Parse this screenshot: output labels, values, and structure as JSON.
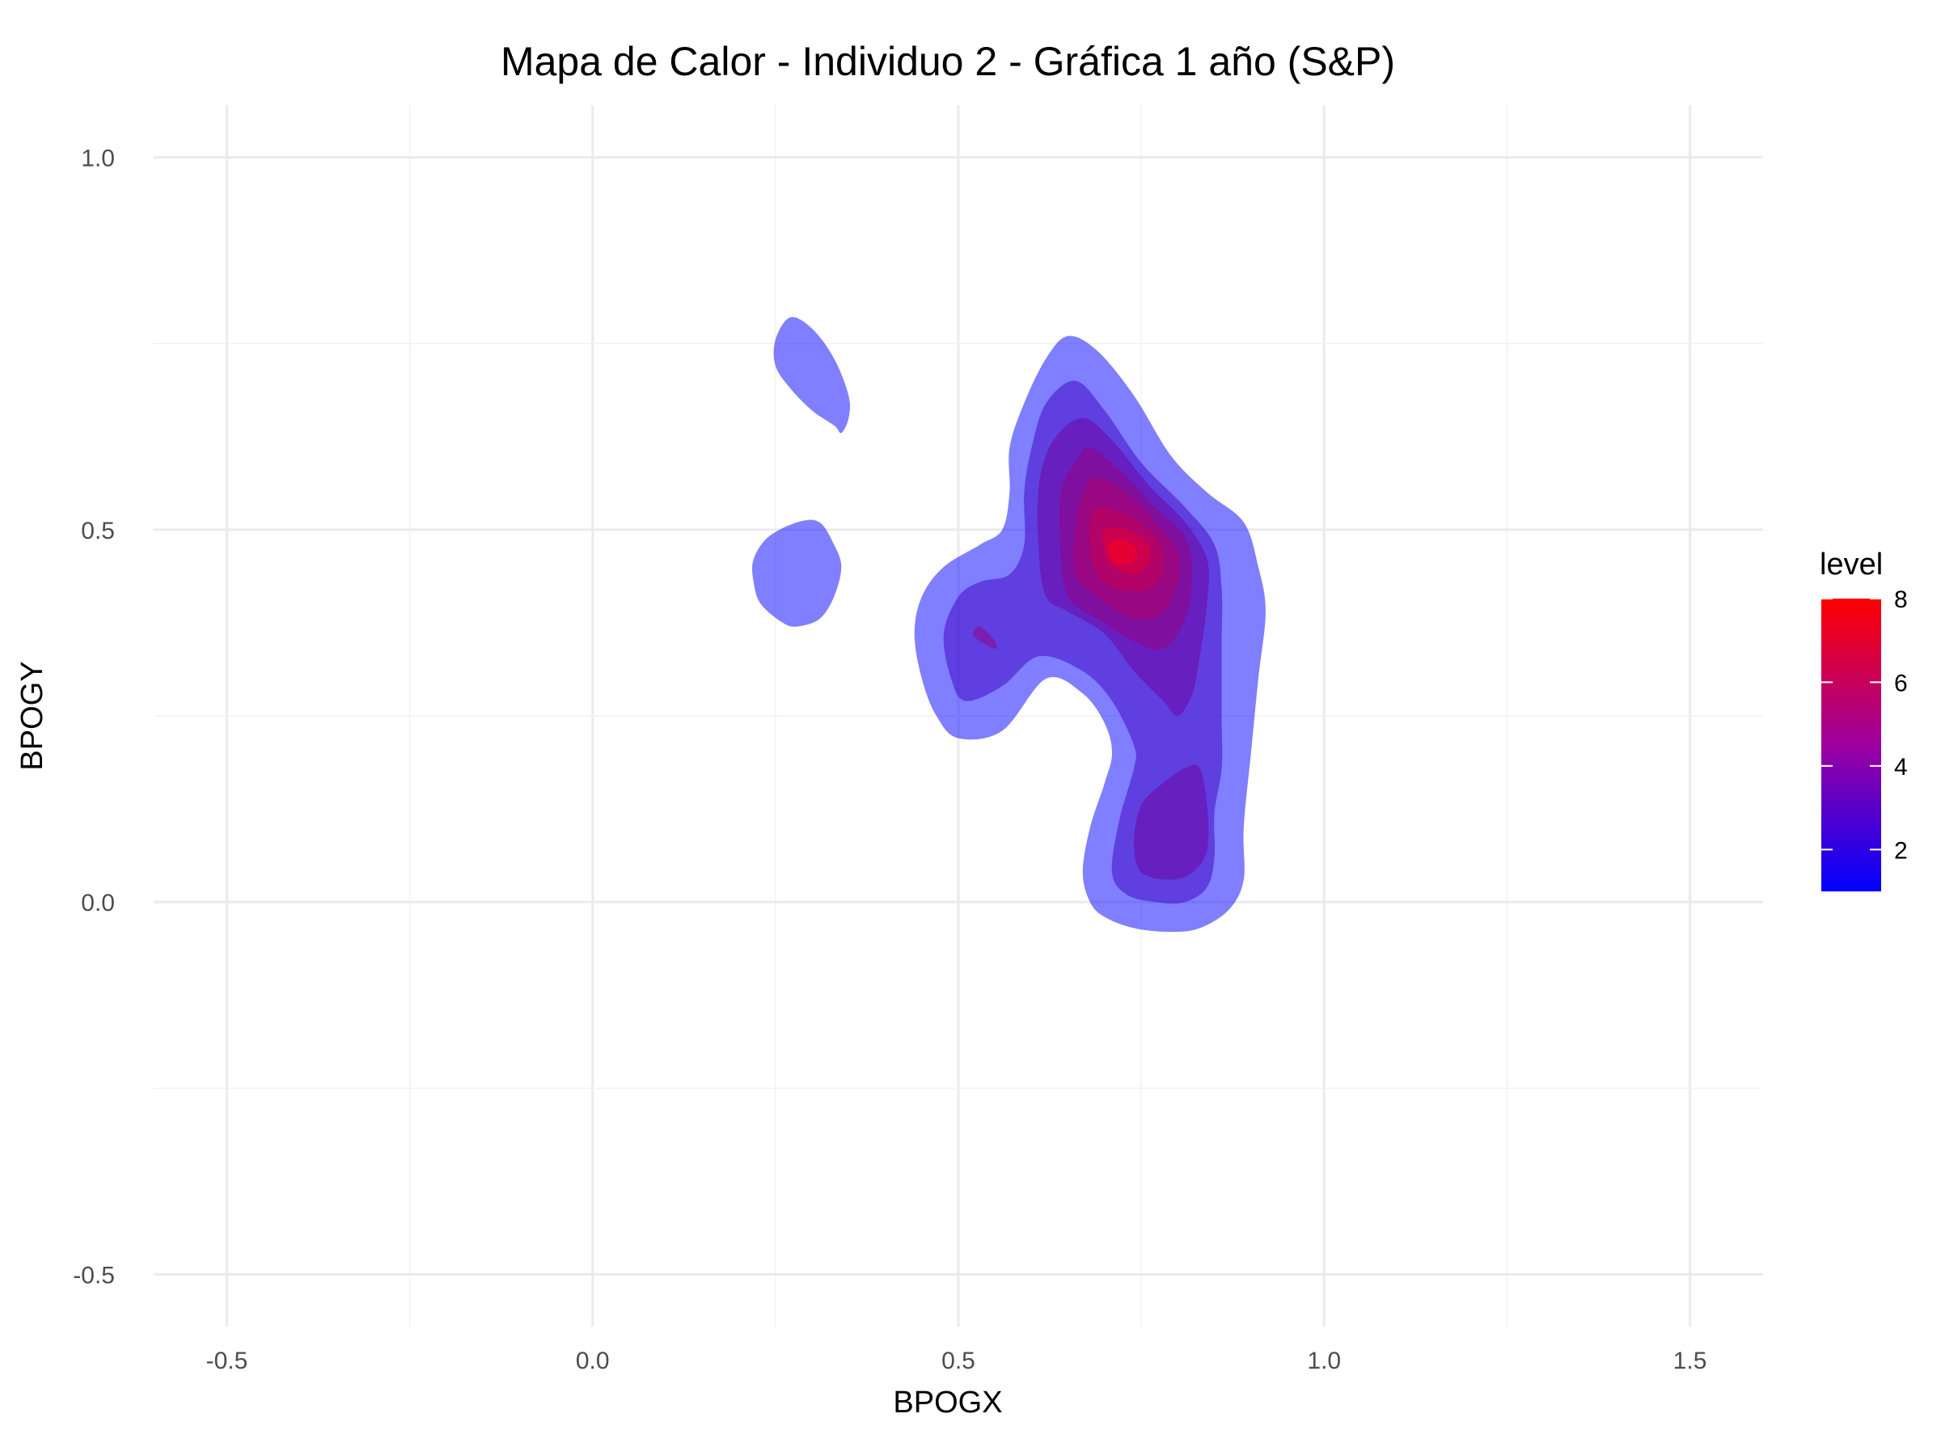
{
  "chart_data": {
    "type": "heatmap",
    "subtype": "2d-density-filled-contour",
    "title": "Mapa de Calor - Individuo 2 - Gráfica 1 año (S&P)",
    "xlabel": "BPOGX",
    "ylabel": "BPOGY",
    "xlim": [
      -0.6,
      1.6
    ],
    "ylim": [
      -0.57,
      1.07
    ],
    "x_ticks": [
      -0.5,
      0.0,
      0.5,
      1.0,
      1.5
    ],
    "x_tick_labels": [
      "-0.5",
      "0.0",
      "0.5",
      "1.0",
      "1.5"
    ],
    "y_ticks": [
      -0.5,
      0.0,
      0.5,
      1.0
    ],
    "y_tick_labels": [
      "-0.5",
      "0.0",
      "0.5",
      "1.0"
    ],
    "grid": true,
    "legend": {
      "title": "level",
      "position": "right",
      "range": [
        1,
        8
      ],
      "breaks": [
        2,
        4,
        6,
        8
      ],
      "break_labels": [
        "2",
        "4",
        "6",
        "8"
      ],
      "low_color": "#0000ff",
      "high_color": "#ff0000"
    },
    "fill_opacity": 0.5,
    "contours": [
      {
        "level": 1,
        "color": "#0000ff",
        "points": [
          [
            0.65,
            0.76
          ],
          [
            0.69,
            0.74
          ],
          [
            0.74,
            0.68
          ],
          [
            0.79,
            0.6
          ],
          [
            0.84,
            0.55
          ],
          [
            0.89,
            0.51
          ],
          [
            0.91,
            0.45
          ],
          [
            0.92,
            0.39
          ],
          [
            0.91,
            0.3
          ],
          [
            0.9,
            0.2
          ],
          [
            0.89,
            0.1
          ],
          [
            0.89,
            0.03
          ],
          [
            0.87,
            -0.01
          ],
          [
            0.83,
            -0.035
          ],
          [
            0.79,
            -0.04
          ],
          [
            0.74,
            -0.035
          ],
          [
            0.7,
            -0.02
          ],
          [
            0.68,
            0.0
          ],
          [
            0.67,
            0.04
          ],
          [
            0.68,
            0.1
          ],
          [
            0.7,
            0.16
          ],
          [
            0.71,
            0.2
          ],
          [
            0.7,
            0.24
          ],
          [
            0.67,
            0.28
          ],
          [
            0.62,
            0.3
          ],
          [
            0.56,
            0.23
          ],
          [
            0.5,
            0.22
          ],
          [
            0.47,
            0.25
          ],
          [
            0.45,
            0.3
          ],
          [
            0.44,
            0.36
          ],
          [
            0.45,
            0.41
          ],
          [
            0.48,
            0.45
          ],
          [
            0.53,
            0.48
          ],
          [
            0.56,
            0.5
          ],
          [
            0.57,
            0.55
          ],
          [
            0.57,
            0.61
          ],
          [
            0.59,
            0.67
          ],
          [
            0.62,
            0.73
          ]
        ]
      },
      {
        "level": 1,
        "color": "#0000ff",
        "points": [
          [
            0.27,
            0.785
          ],
          [
            0.3,
            0.77
          ],
          [
            0.33,
            0.73
          ],
          [
            0.35,
            0.68
          ],
          [
            0.35,
            0.65
          ],
          [
            0.34,
            0.63
          ],
          [
            0.33,
            0.64
          ],
          [
            0.3,
            0.66
          ],
          [
            0.27,
            0.69
          ],
          [
            0.25,
            0.72
          ],
          [
            0.25,
            0.755
          ]
        ]
      },
      {
        "level": 1,
        "color": "#0000ff",
        "points": [
          [
            0.28,
            0.51
          ],
          [
            0.31,
            0.51
          ],
          [
            0.33,
            0.48
          ],
          [
            0.34,
            0.45
          ],
          [
            0.33,
            0.41
          ],
          [
            0.31,
            0.38
          ],
          [
            0.28,
            0.37
          ],
          [
            0.26,
            0.375
          ],
          [
            0.23,
            0.4
          ],
          [
            0.22,
            0.43
          ],
          [
            0.22,
            0.46
          ],
          [
            0.24,
            0.49
          ]
        ]
      },
      {
        "level": 2,
        "color": "#3f00c0",
        "points": [
          [
            0.66,
            0.7
          ],
          [
            0.7,
            0.66
          ],
          [
            0.75,
            0.59
          ],
          [
            0.81,
            0.53
          ],
          [
            0.85,
            0.48
          ],
          [
            0.86,
            0.42
          ],
          [
            0.86,
            0.35
          ],
          [
            0.86,
            0.25
          ],
          [
            0.86,
            0.18
          ],
          [
            0.85,
            0.12
          ],
          [
            0.85,
            0.06
          ],
          [
            0.84,
            0.02
          ],
          [
            0.81,
            0.0
          ],
          [
            0.77,
            0.0
          ],
          [
            0.73,
            0.01
          ],
          [
            0.71,
            0.04
          ],
          [
            0.72,
            0.11
          ],
          [
            0.74,
            0.18
          ],
          [
            0.74,
            0.21
          ],
          [
            0.71,
            0.27
          ],
          [
            0.67,
            0.31
          ],
          [
            0.61,
            0.33
          ],
          [
            0.56,
            0.29
          ],
          [
            0.51,
            0.27
          ],
          [
            0.49,
            0.3
          ],
          [
            0.48,
            0.36
          ],
          [
            0.5,
            0.41
          ],
          [
            0.53,
            0.43
          ],
          [
            0.57,
            0.44
          ],
          [
            0.59,
            0.48
          ],
          [
            0.59,
            0.55
          ],
          [
            0.6,
            0.61
          ],
          [
            0.62,
            0.67
          ]
        ]
      },
      {
        "level": 3,
        "color": "#7100a0",
        "points": [
          [
            0.67,
            0.65
          ],
          [
            0.71,
            0.62
          ],
          [
            0.76,
            0.56
          ],
          [
            0.81,
            0.51
          ],
          [
            0.84,
            0.46
          ],
          [
            0.84,
            0.4
          ],
          [
            0.83,
            0.33
          ],
          [
            0.82,
            0.28
          ],
          [
            0.8,
            0.25
          ],
          [
            0.78,
            0.27
          ],
          [
            0.74,
            0.31
          ],
          [
            0.7,
            0.36
          ],
          [
            0.65,
            0.39
          ],
          [
            0.62,
            0.41
          ],
          [
            0.61,
            0.47
          ],
          [
            0.61,
            0.56
          ],
          [
            0.63,
            0.62
          ]
        ]
      },
      {
        "level": 3,
        "color": "#7100a0",
        "points": [
          [
            0.83,
            0.18
          ],
          [
            0.84,
            0.13
          ],
          [
            0.84,
            0.07
          ],
          [
            0.82,
            0.04
          ],
          [
            0.79,
            0.03
          ],
          [
            0.75,
            0.04
          ],
          [
            0.74,
            0.08
          ],
          [
            0.75,
            0.13
          ],
          [
            0.78,
            0.16
          ],
          [
            0.81,
            0.18
          ]
        ]
      },
      {
        "level": 4,
        "color": "#960080",
        "points": [
          [
            0.68,
            0.61
          ],
          [
            0.72,
            0.58
          ],
          [
            0.77,
            0.53
          ],
          [
            0.81,
            0.49
          ],
          [
            0.82,
            0.44
          ],
          [
            0.81,
            0.38
          ],
          [
            0.78,
            0.34
          ],
          [
            0.74,
            0.35
          ],
          [
            0.69,
            0.38
          ],
          [
            0.65,
            0.41
          ],
          [
            0.64,
            0.47
          ],
          [
            0.64,
            0.55
          ],
          [
            0.66,
            0.59
          ]
        ]
      },
      {
        "level": 4,
        "color": "#960080",
        "points": [
          [
            0.53,
            0.37
          ],
          [
            0.55,
            0.35
          ],
          [
            0.55,
            0.34
          ],
          [
            0.53,
            0.35
          ],
          [
            0.52,
            0.36
          ]
        ]
      },
      {
        "level": 5,
        "color": "#b30066",
        "points": [
          [
            0.69,
            0.57
          ],
          [
            0.73,
            0.55
          ],
          [
            0.77,
            0.51
          ],
          [
            0.8,
            0.47
          ],
          [
            0.8,
            0.43
          ],
          [
            0.78,
            0.39
          ],
          [
            0.74,
            0.38
          ],
          [
            0.69,
            0.41
          ],
          [
            0.66,
            0.44
          ],
          [
            0.66,
            0.5
          ],
          [
            0.67,
            0.55
          ]
        ]
      },
      {
        "level": 6,
        "color": "#cc004d",
        "points": [
          [
            0.69,
            0.53
          ],
          [
            0.73,
            0.52
          ],
          [
            0.77,
            0.49
          ],
          [
            0.78,
            0.45
          ],
          [
            0.76,
            0.42
          ],
          [
            0.72,
            0.42
          ],
          [
            0.69,
            0.44
          ],
          [
            0.68,
            0.48
          ],
          [
            0.68,
            0.51
          ]
        ]
      },
      {
        "level": 7,
        "color": "#e60033",
        "points": [
          [
            0.7,
            0.5
          ],
          [
            0.73,
            0.5
          ],
          [
            0.76,
            0.48
          ],
          [
            0.76,
            0.455
          ],
          [
            0.74,
            0.44
          ],
          [
            0.71,
            0.45
          ],
          [
            0.7,
            0.47
          ]
        ]
      },
      {
        "level": 8,
        "color": "#ff001a",
        "points": [
          [
            0.71,
            0.485
          ],
          [
            0.73,
            0.485
          ],
          [
            0.745,
            0.47
          ],
          [
            0.735,
            0.455
          ],
          [
            0.715,
            0.455
          ],
          [
            0.705,
            0.47
          ]
        ]
      }
    ]
  }
}
